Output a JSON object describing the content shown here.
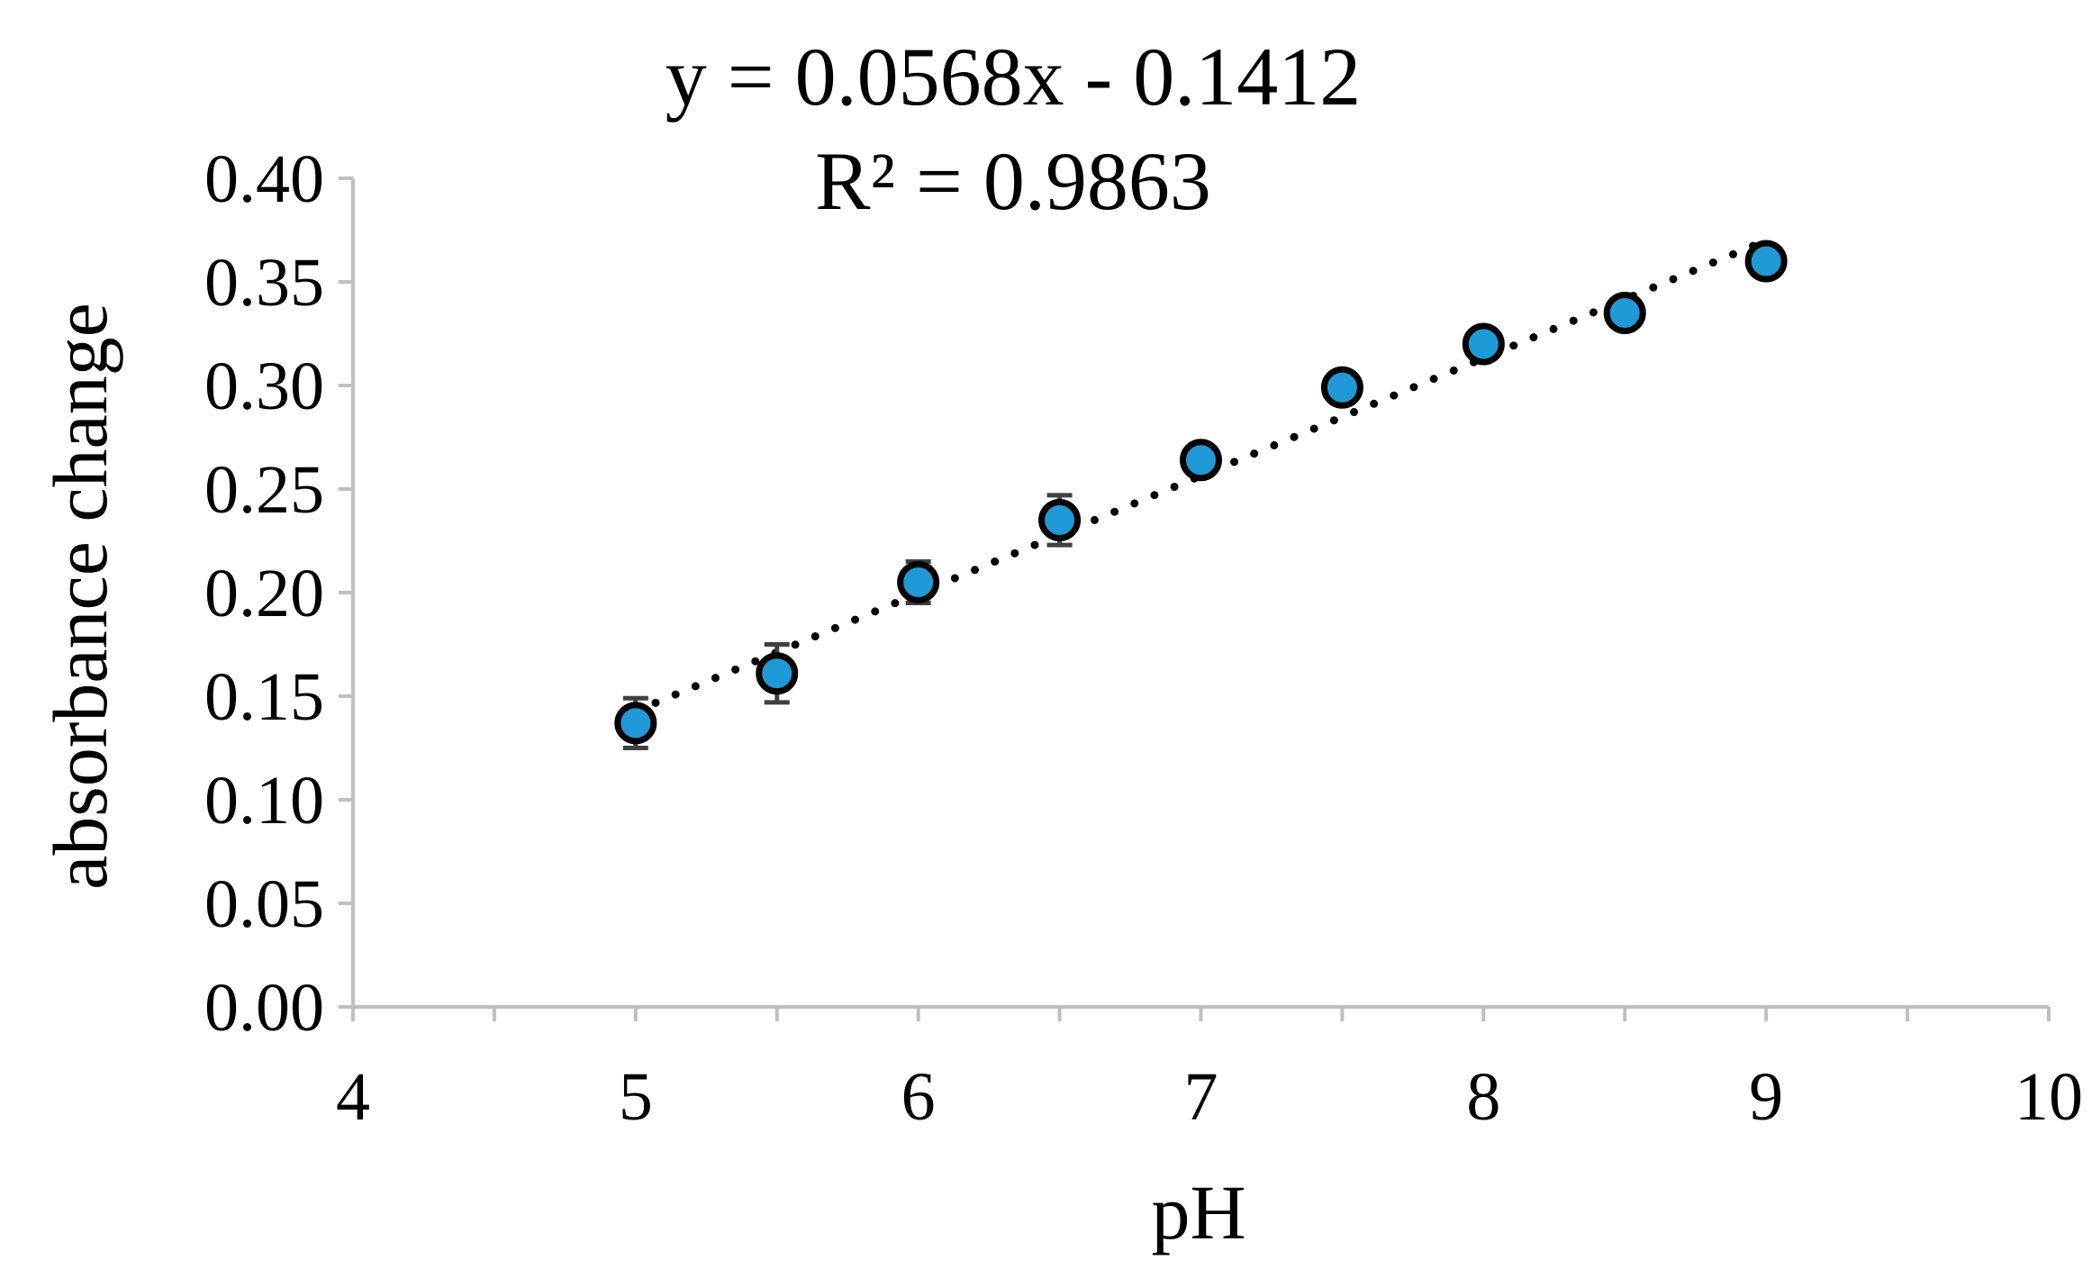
{
  "chart_data": {
    "type": "scatter",
    "title": "",
    "xlabel": "pH",
    "ylabel": "absorbance  change",
    "xlim": [
      4,
      10
    ],
    "ylim": [
      0,
      0.4
    ],
    "x_ticks": [
      "4",
      "5",
      "6",
      "7",
      "8",
      "9",
      "10"
    ],
    "y_ticks": [
      "0.00",
      "0.05",
      "0.10",
      "0.15",
      "0.20",
      "0.25",
      "0.30",
      "0.35",
      "0.40"
    ],
    "grid": false,
    "legend": "none",
    "marker_color": "#1f9ad6",
    "trendline": {
      "equation": "y = 0.0568x - 0.1412",
      "r_squared": "R² = 0.9863",
      "slope": 0.0568,
      "intercept": -0.1412,
      "style": "dotted"
    },
    "series": [
      {
        "points": [
          {
            "x": 5.0,
            "y": 0.137,
            "err": 0.012
          },
          {
            "x": 5.5,
            "y": 0.161,
            "err": 0.014
          },
          {
            "x": 6.0,
            "y": 0.205,
            "err": 0.01
          },
          {
            "x": 6.5,
            "y": 0.235,
            "err": 0.012
          },
          {
            "x": 7.0,
            "y": 0.264,
            "err": 0.007
          },
          {
            "x": 7.5,
            "y": 0.299,
            "err": 0.004
          },
          {
            "x": 8.0,
            "y": 0.32,
            "err": 0.005
          },
          {
            "x": 8.5,
            "y": 0.335,
            "err": 0.004
          },
          {
            "x": 9.0,
            "y": 0.36,
            "err": 0.003
          }
        ]
      }
    ]
  }
}
